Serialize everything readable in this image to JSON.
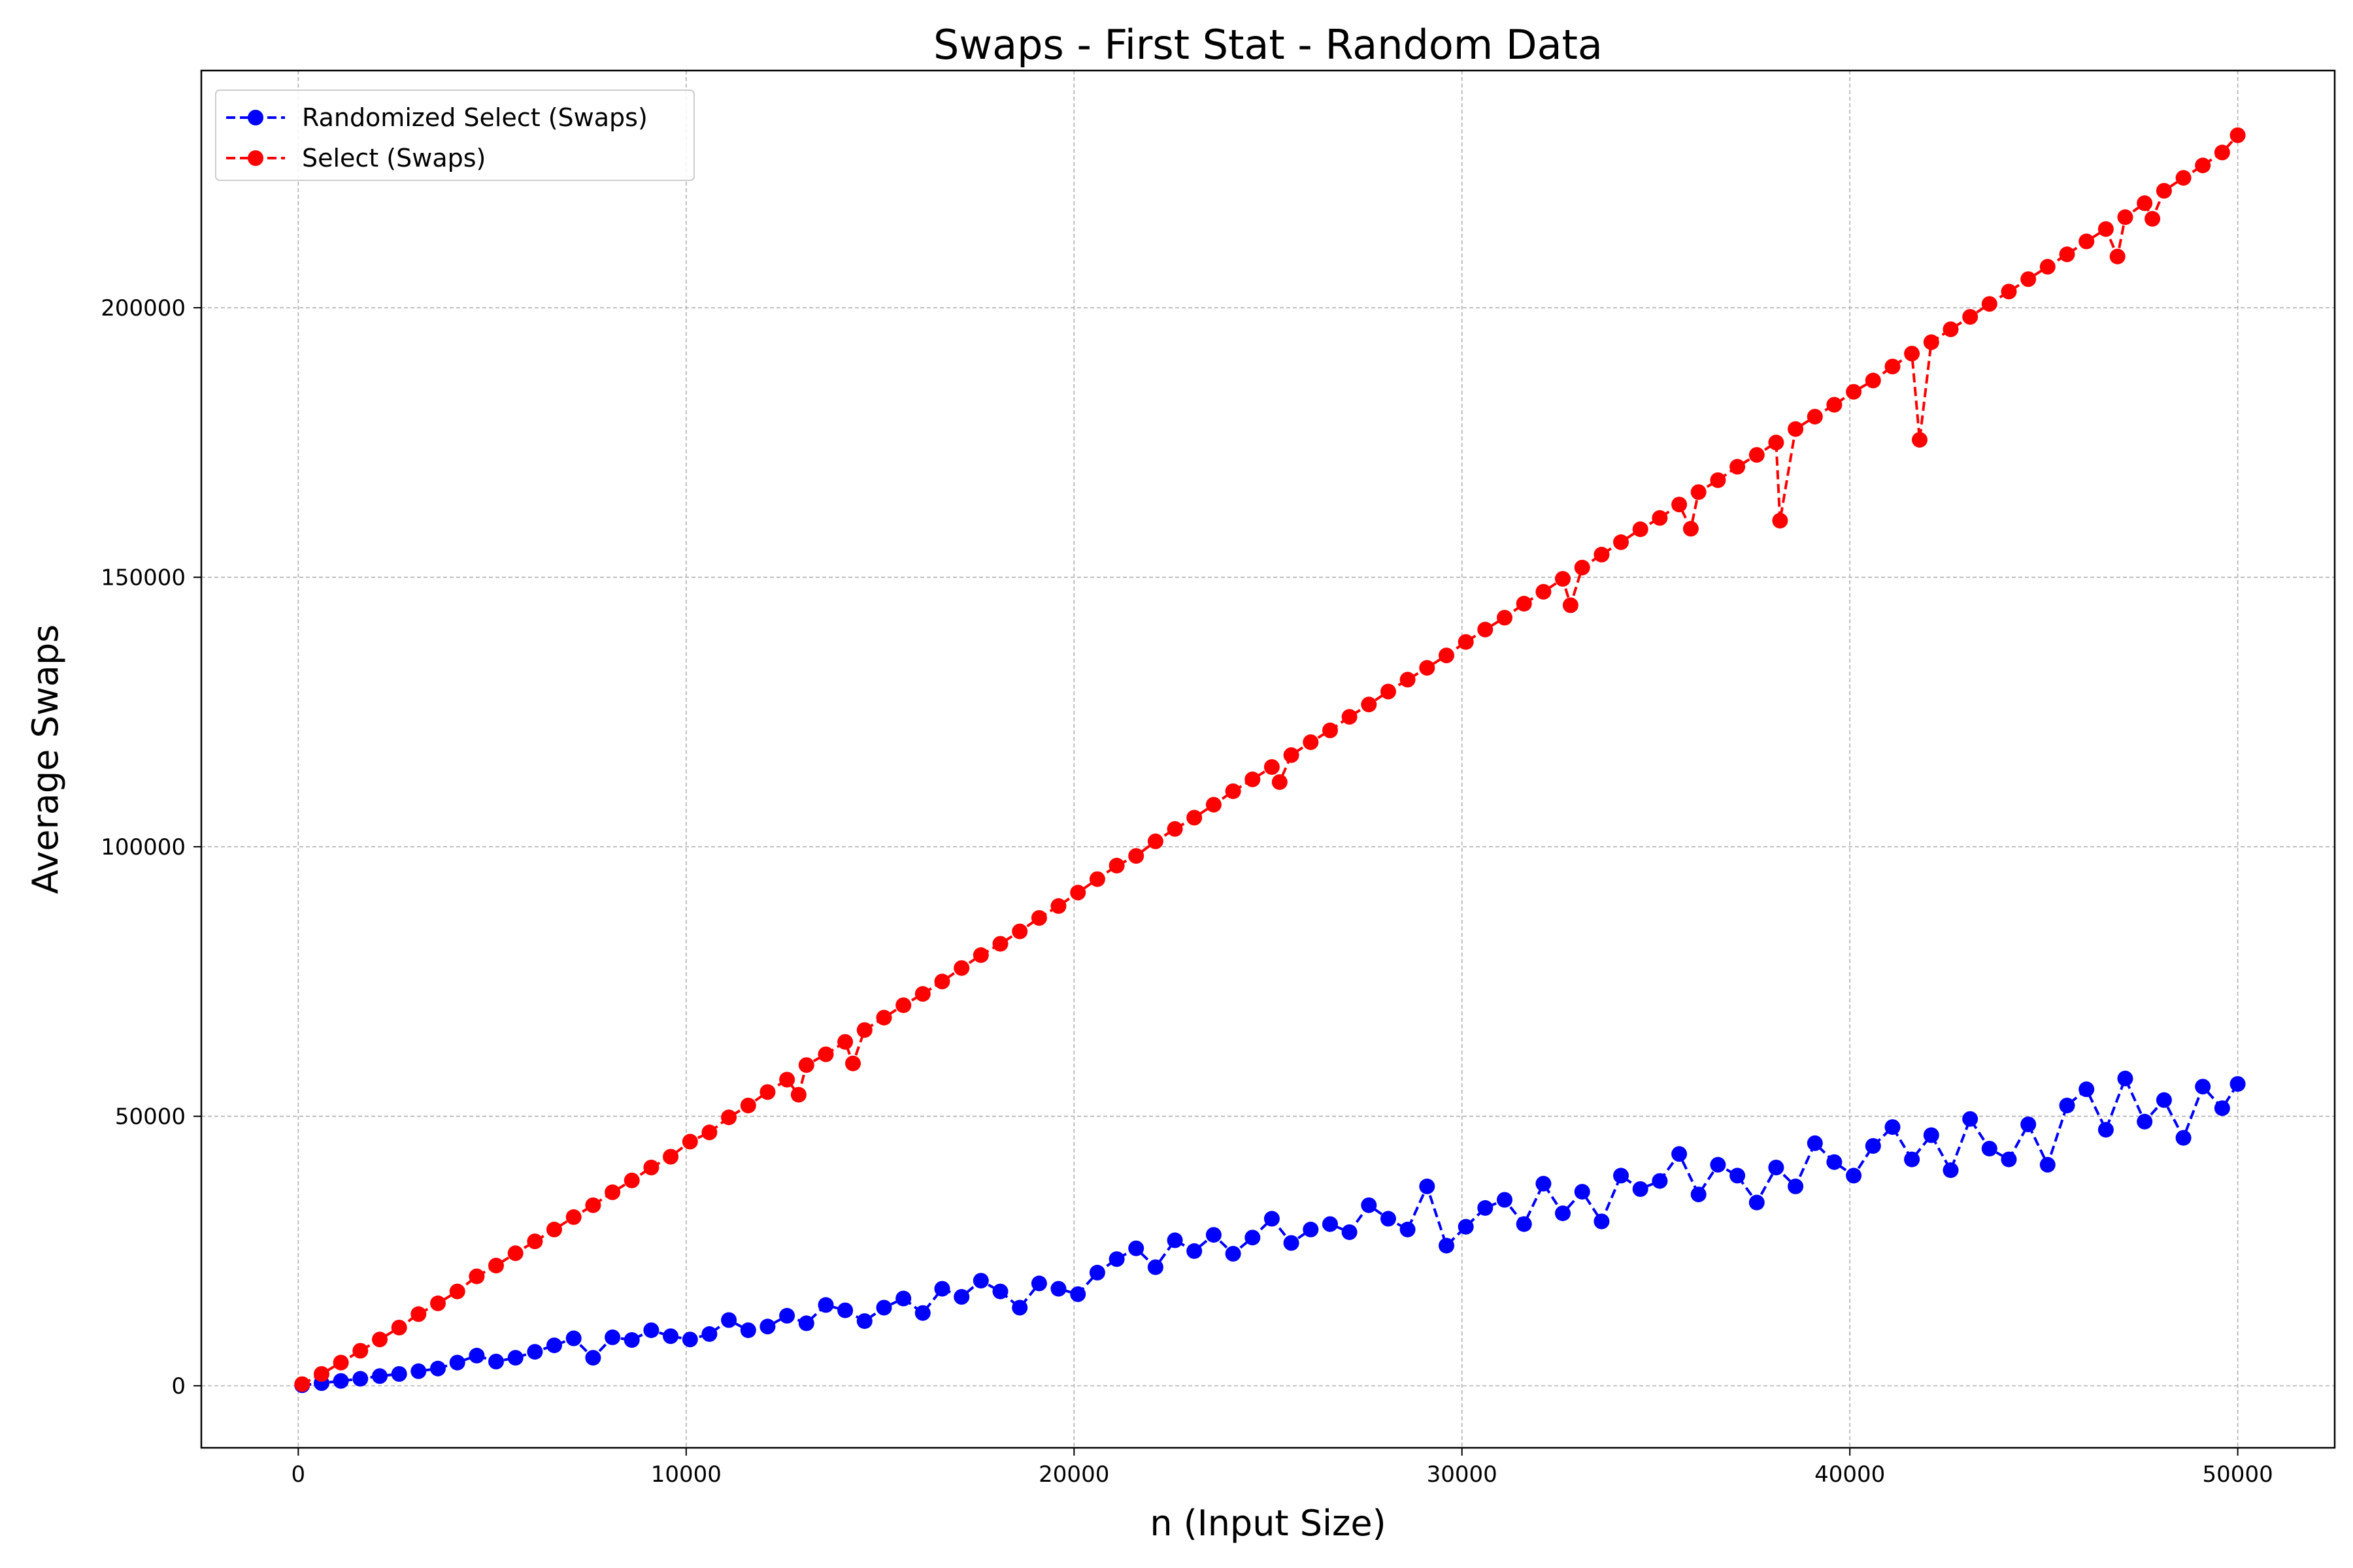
{
  "chart_data": {
    "type": "line",
    "title": "Swaps - First Stat - Random Data",
    "xlabel": "n (Input Size)",
    "ylabel": "Average Swaps",
    "xlim": [
      -2500,
      52500
    ],
    "ylim": [
      -11500,
      244000
    ],
    "xticks": [
      0,
      10000,
      20000,
      30000,
      40000,
      50000
    ],
    "yticks": [
      0,
      50000,
      100000,
      150000,
      200000
    ],
    "grid": true,
    "legend_position": "top-left",
    "series": [
      {
        "name": "Randomized Select (Swaps)",
        "color": "#0000ff",
        "marker": "circle",
        "linestyle": "dashed",
        "x": [
          100,
          600,
          1100,
          1600,
          2100,
          2600,
          3100,
          3600,
          4100,
          4600,
          5100,
          5600,
          6100,
          6600,
          7100,
          7600,
          8100,
          8600,
          9100,
          9600,
          10100,
          10600,
          11100,
          11600,
          12100,
          12600,
          13100,
          13600,
          14100,
          14600,
          15100,
          15600,
          16100,
          16600,
          17100,
          17600,
          18100,
          18600,
          19100,
          19600,
          20100,
          20600,
          21100,
          21600,
          22100,
          22600,
          23100,
          23600,
          24100,
          24600,
          25100,
          25600,
          26100,
          26600,
          27100,
          27600,
          28100,
          28600,
          29100,
          29600,
          30100,
          30600,
          31100,
          31600,
          32100,
          32600,
          33100,
          33600,
          34100,
          34600,
          35100,
          35600,
          36100,
          36600,
          37100,
          37600,
          38100,
          38600,
          39100,
          39600,
          40100,
          40600,
          41100,
          41600,
          42100,
          42600,
          43100,
          43600,
          44100,
          44600,
          45100,
          45600,
          46100,
          46600,
          47100,
          47600,
          48100,
          48600,
          49100,
          49600,
          50000
        ],
        "y": [
          100,
          500,
          900,
          1300,
          1800,
          2200,
          2700,
          3200,
          4300,
          5600,
          4500,
          5200,
          6300,
          7500,
          8800,
          5200,
          9000,
          8500,
          10300,
          9200,
          8600,
          9600,
          12200,
          10300,
          11000,
          13000,
          11600,
          15000,
          14000,
          12000,
          14500,
          16200,
          13500,
          18000,
          16500,
          19500,
          17500,
          14500,
          19000,
          18000,
          17000,
          21000,
          23500,
          25500,
          22000,
          27000,
          25000,
          28000,
          24500,
          27500,
          31000,
          26500,
          29000,
          30000,
          28500,
          33500,
          31000,
          29000,
          37000,
          26000,
          29500,
          33000,
          34500,
          30000,
          37500,
          32000,
          36000,
          30500,
          39000,
          36500,
          38000,
          43000,
          35500,
          41000,
          39000,
          34000,
          40500,
          37000,
          45000,
          41500,
          39000,
          44500,
          48000,
          42000,
          46500,
          40000,
          49500,
          44000,
          42000,
          48500,
          41000,
          52000,
          55000,
          47500,
          57000,
          49000,
          53000,
          46000,
          55500,
          51500,
          56000
        ]
      },
      {
        "name": "Select (Swaps)",
        "color": "#ff0000",
        "marker": "circle",
        "linestyle": "dashed",
        "x": [
          100,
          600,
          1100,
          1600,
          2100,
          2600,
          3100,
          3600,
          4100,
          4600,
          5100,
          5600,
          6100,
          6600,
          7100,
          7600,
          8100,
          8600,
          9100,
          9600,
          10100,
          10600,
          11100,
          11600,
          12100,
          12600,
          12900,
          13100,
          13600,
          14100,
          14300,
          14600,
          15100,
          15600,
          16100,
          16600,
          17100,
          17600,
          18100,
          18600,
          19100,
          19600,
          20100,
          20600,
          21100,
          21600,
          22100,
          22600,
          23100,
          23600,
          24100,
          24600,
          25100,
          25300,
          25600,
          26100,
          26600,
          27100,
          27600,
          28100,
          28600,
          29100,
          29600,
          30100,
          30600,
          31100,
          31600,
          32100,
          32600,
          32800,
          33100,
          33600,
          34100,
          34600,
          35100,
          35600,
          35900,
          36100,
          36600,
          37100,
          37600,
          38100,
          38200,
          38600,
          39100,
          39600,
          40100,
          40600,
          41100,
          41600,
          41800,
          42100,
          42600,
          43100,
          43600,
          44100,
          44600,
          45100,
          45600,
          46100,
          46600,
          46900,
          47100,
          47600,
          47800,
          48100,
          48600,
          49100,
          49600,
          50000
        ],
        "y": [
          300,
          2200,
          4300,
          6500,
          8600,
          10800,
          13300,
          15300,
          17500,
          20300,
          22300,
          24600,
          26800,
          29000,
          31300,
          33500,
          35900,
          38100,
          40500,
          42500,
          45300,
          47000,
          49800,
          52000,
          54500,
          56800,
          54000,
          59500,
          61500,
          63800,
          59800,
          66000,
          68300,
          70600,
          72700,
          75000,
          77500,
          79900,
          82000,
          84300,
          86800,
          89000,
          91500,
          94000,
          96500,
          98300,
          101000,
          103300,
          105400,
          107800,
          110300,
          112500,
          114800,
          112000,
          117000,
          119400,
          121600,
          124100,
          126400,
          128800,
          131000,
          133200,
          135500,
          138000,
          140300,
          142500,
          145100,
          147300,
          149700,
          144800,
          151800,
          154200,
          156500,
          158900,
          161000,
          163500,
          159000,
          165800,
          168000,
          170500,
          172700,
          175000,
          160500,
          177500,
          179800,
          182000,
          184400,
          186500,
          189100,
          191500,
          175500,
          193600,
          196000,
          198300,
          200700,
          203000,
          205300,
          207600,
          209900,
          212300,
          214600,
          209500,
          216800,
          219400,
          216500,
          221700,
          224100,
          226400,
          228800,
          232000
        ]
      }
    ]
  }
}
